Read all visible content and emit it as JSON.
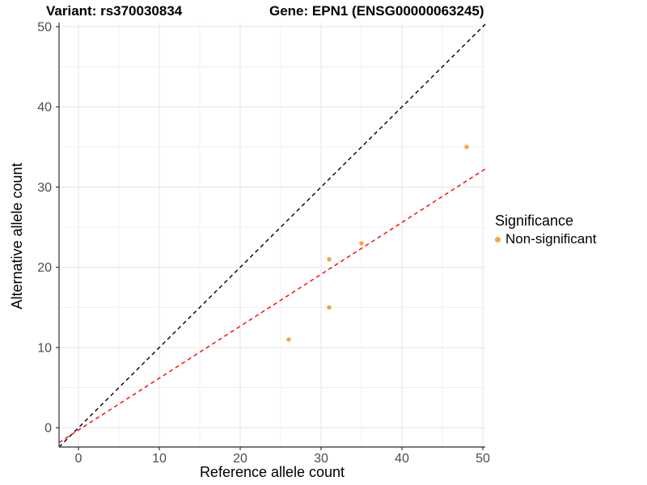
{
  "chart_data": {
    "type": "scatter",
    "titles": {
      "left": "Variant: rs370030834",
      "right": "Gene: EPN1 (ENSG00000063245)"
    },
    "xlabel": "Reference allele count",
    "ylabel": "Alternative allele count",
    "xlim": [
      -2.4,
      50.3
    ],
    "ylim": [
      -2.4,
      50.5
    ],
    "xticks": [
      0,
      10,
      20,
      30,
      40,
      50
    ],
    "yticks": [
      0,
      10,
      20,
      30,
      40,
      50
    ],
    "grid_interval": 5,
    "grid_on": true,
    "points": {
      "color": "#FAA43A",
      "radius": 2.7,
      "xy": [
        [
          26,
          11
        ],
        [
          31,
          15
        ],
        [
          31,
          21
        ],
        [
          35,
          23
        ],
        [
          48,
          35
        ]
      ]
    },
    "lines": [
      {
        "name": "identity-line",
        "color": "#000000",
        "dash": "5 4",
        "width": 1.4,
        "x1": -2.4,
        "y1": -2.4,
        "x2": 50.3,
        "y2": 50.3
      },
      {
        "name": "regression-line",
        "color": "#FF0000",
        "dash": "5 4",
        "width": 1.4,
        "x1": -2.4,
        "y1": -1.84,
        "x2": 50.3,
        "y2": 32.26
      }
    ],
    "legend": {
      "title": "Significance",
      "position": "right",
      "items": [
        {
          "label": "Non-significant",
          "color": "#FAA43A"
        }
      ]
    },
    "axis_style": {
      "axis_line_color": "#4D4D4D",
      "tick_mark_color": "#333333",
      "tick_label_color": "#4D4D4D",
      "grid_major_color": "#E5E5E5",
      "grid_minor_color": "#F0F0F0"
    }
  }
}
